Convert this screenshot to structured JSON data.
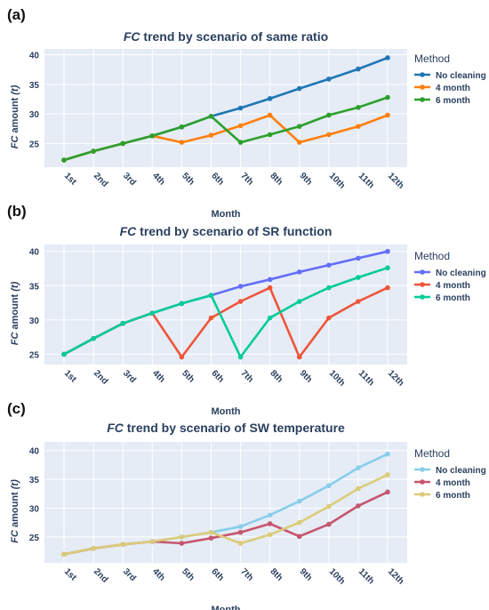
{
  "labels": {
    "y_unit": "(t)"
  },
  "chart_data": [
    {
      "panel": "(a)",
      "type": "line",
      "title_italic": "FC",
      "title_rest": "trend by scenario of same ratio",
      "xlabel": "Month",
      "ylabel_italic": "FC",
      "ylabel_rest": "amount",
      "categories": [
        "1st",
        "2nd",
        "3rd",
        "4th",
        "5th",
        "6th",
        "7th",
        "8th",
        "9th",
        "10th",
        "11th",
        "12th"
      ],
      "ylim": [
        21,
        41
      ],
      "yticks": [
        25,
        30,
        35,
        40
      ],
      "grid": true,
      "legend": {
        "title": "Method",
        "placement": "right"
      },
      "series": [
        {
          "name": "No cleaning",
          "color": "#1f77b4",
          "values": [
            22.2,
            23.7,
            25.0,
            26.3,
            27.8,
            29.6,
            31.0,
            32.6,
            34.3,
            35.9,
            37.6,
            39.5
          ]
        },
        {
          "name": "4 month",
          "color": "#ff7f0e",
          "values": [
            22.2,
            23.7,
            25.0,
            26.3,
            25.2,
            26.4,
            28.0,
            29.8,
            25.2,
            26.5,
            27.9,
            29.8
          ]
        },
        {
          "name": "6 month",
          "color": "#2ca02c",
          "values": [
            22.2,
            23.7,
            25.0,
            26.3,
            27.8,
            29.6,
            25.2,
            26.5,
            27.9,
            29.8,
            31.1,
            32.8
          ]
        }
      ]
    },
    {
      "panel": "(b)",
      "type": "line",
      "title_italic": "FC",
      "title_rest": "trend by scenario of SR function",
      "xlabel": "Month",
      "ylabel_italic": "FC",
      "ylabel_rest": "amount",
      "categories": [
        "1st",
        "2nd",
        "3rd",
        "4th",
        "5th",
        "6th",
        "7th",
        "8th",
        "9th",
        "10th",
        "11th",
        "12th"
      ],
      "ylim": [
        23.5,
        41
      ],
      "yticks": [
        25,
        30,
        35,
        40
      ],
      "grid": true,
      "legend": {
        "title": "Method",
        "placement": "right"
      },
      "series": [
        {
          "name": "No cleaning",
          "color": "#636efa",
          "values": [
            25.0,
            27.3,
            29.5,
            31.0,
            32.4,
            33.6,
            34.9,
            35.9,
            37.0,
            38.0,
            39.0,
            40.0
          ]
        },
        {
          "name": "4 month",
          "color": "#ef553b",
          "values": [
            25.0,
            27.3,
            29.5,
            31.0,
            24.6,
            30.3,
            32.7,
            34.7,
            24.6,
            30.3,
            32.7,
            34.7
          ]
        },
        {
          "name": "6 month",
          "color": "#00cc96",
          "values": [
            25.0,
            27.3,
            29.5,
            31.0,
            32.4,
            33.6,
            24.6,
            30.3,
            32.7,
            34.7,
            36.2,
            37.6
          ]
        }
      ]
    },
    {
      "panel": "(c)",
      "type": "line",
      "title_italic": "FC",
      "title_rest": "trend by scenario of SW temperature",
      "xlabel": "Month",
      "ylabel_italic": "FC",
      "ylabel_rest": "amount",
      "categories": [
        "1st",
        "2nd",
        "3rd",
        "4th",
        "5th",
        "6th",
        "7th",
        "8th",
        "9th",
        "10th",
        "11th",
        "12th"
      ],
      "ylim": [
        20.5,
        41.5
      ],
      "yticks": [
        25,
        30,
        35,
        40
      ],
      "grid": true,
      "legend": {
        "title": "Method",
        "placement": "right"
      },
      "series": [
        {
          "name": "No cleaning",
          "color": "#87ceeb",
          "values": [
            22.0,
            23.0,
            23.7,
            24.2,
            25.0,
            25.8,
            26.8,
            28.8,
            31.2,
            33.9,
            37.0,
            39.4
          ]
        },
        {
          "name": "4 month",
          "color": "#c7556e",
          "values": [
            22.0,
            23.0,
            23.7,
            24.2,
            23.9,
            24.8,
            25.8,
            27.3,
            25.1,
            27.2,
            30.4,
            32.8
          ]
        },
        {
          "name": "6 month",
          "color": "#dccb78",
          "values": [
            22.0,
            23.0,
            23.7,
            24.2,
            25.0,
            25.8,
            23.9,
            25.4,
            27.5,
            30.3,
            33.4,
            35.8
          ]
        }
      ]
    }
  ]
}
